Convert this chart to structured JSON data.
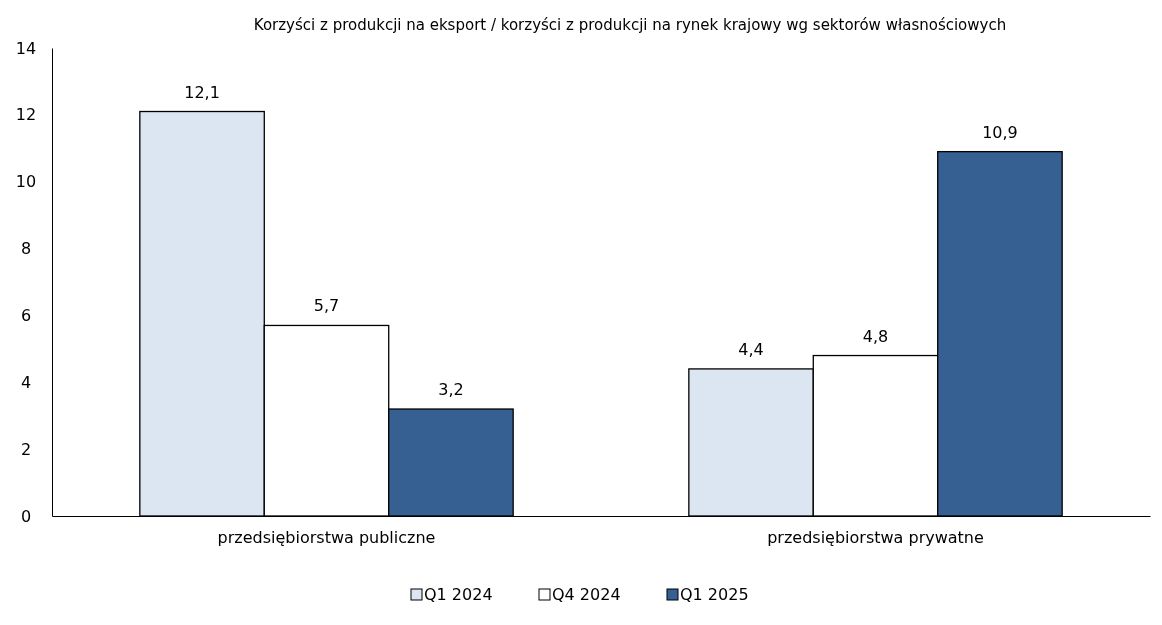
{
  "chart_data": {
    "type": "bar",
    "title": "Korzyści z produkcji na eksport / korzyści z produkcji na rynek krajowy wg sektorów własnościowych",
    "categories": [
      "przedsiębiorstwa publiczne",
      "przedsiębiorstwa prywatne"
    ],
    "series": [
      {
        "name": "Q1 2024",
        "color": "#dce6f2",
        "values": [
          12.1,
          4.4
        ],
        "value_labels": [
          "12,1",
          "4,4"
        ]
      },
      {
        "name": "Q4 2024",
        "color": "#ffffff",
        "values": [
          5.7,
          4.8
        ],
        "value_labels": [
          "5,7",
          "4,8"
        ]
      },
      {
        "name": "Q1 2025",
        "color": "#376092",
        "values": [
          3.2,
          10.9
        ],
        "value_labels": [
          "3,2",
          "10,9"
        ]
      }
    ],
    "ylim": [
      0,
      14
    ],
    "yticks": [
      0,
      2,
      4,
      6,
      8,
      10,
      12,
      14
    ],
    "grid": false,
    "legend": "bottom"
  }
}
